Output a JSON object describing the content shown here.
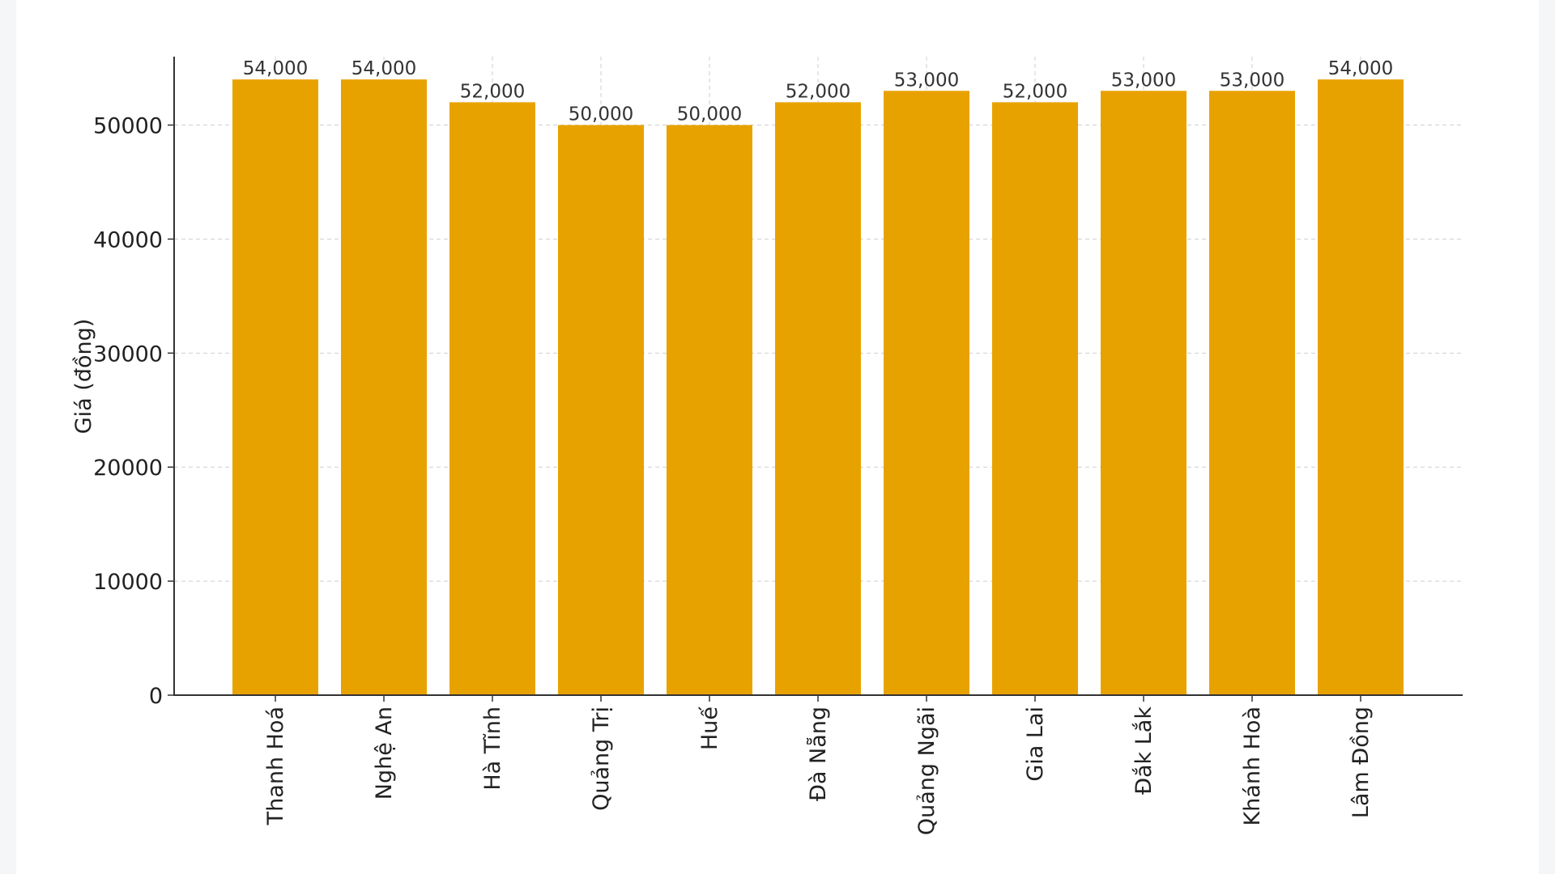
{
  "chart_data": {
    "type": "bar",
    "title": "",
    "xlabel": "",
    "ylabel": "Giá (đồng)",
    "categories": [
      "Thanh Hoá",
      "Nghệ An",
      "Hà Tĩnh",
      "Quảng Trị",
      "Huế",
      "Đà Nẵng",
      "Quảng Ngãi",
      "Gia Lai",
      "Đắk Lắk",
      "Khánh Hoà",
      "Lâm Đồng"
    ],
    "values": [
      54000,
      54000,
      52000,
      50000,
      50000,
      52000,
      53000,
      52000,
      53000,
      53000,
      54000
    ],
    "value_labels": [
      "54,000",
      "54,000",
      "52,000",
      "50,000",
      "50,000",
      "52,000",
      "53,000",
      "52,000",
      "53,000",
      "53,000",
      "54,000"
    ],
    "ylim": [
      0,
      56000
    ],
    "yticks": [
      0,
      10000,
      20000,
      30000,
      40000,
      50000
    ],
    "ytick_labels": [
      "0",
      "10000",
      "20000",
      "30000",
      "40000",
      "50000"
    ],
    "grid": true,
    "bar_color": "#e8a200"
  }
}
